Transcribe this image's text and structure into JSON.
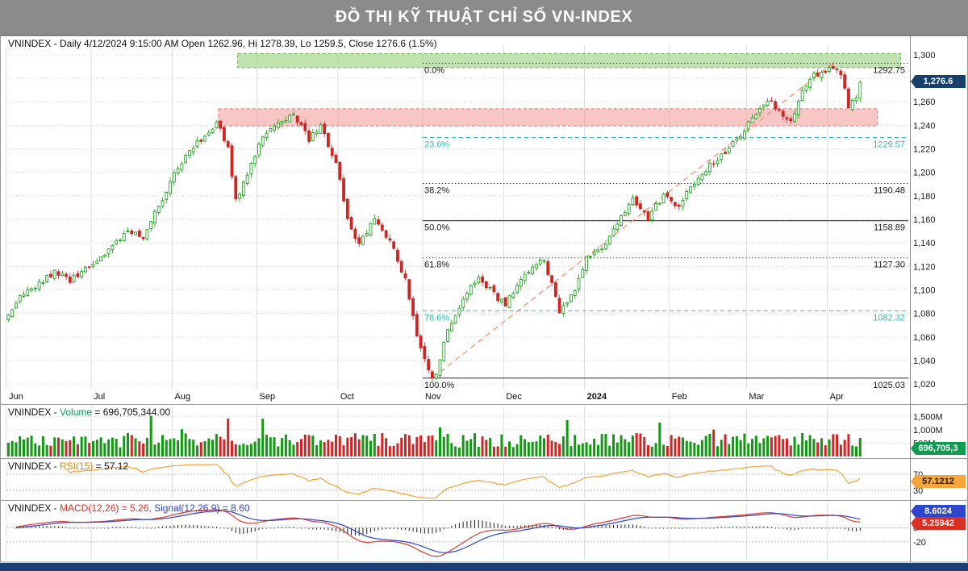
{
  "header": {
    "title": "ĐỒ THỊ KỸ THUẬT CHỈ SỐ VN-INDEX"
  },
  "panes": {
    "price": {
      "title": "VNINDEX - Daily 4/12/2024 9:15:00 AM Open 1262.96, Hi 1278.39, Lo 1259.5, Close 1276.6 (1.5%)"
    },
    "volume": {
      "prefix": "VNINDEX - ",
      "label": "Volume",
      "value": " = 696,705,344.00"
    },
    "rsi": {
      "prefix": "VNINDEX - ",
      "label": "RSI(15)",
      "value": " = 57.12"
    },
    "macd": {
      "prefix": "VNINDEX - ",
      "macd_label": "MACD(12,26) = 5.26,",
      "signal_label": " Signal(12,26,9) = 8.60"
    }
  },
  "badges": {
    "price": "1,276.6",
    "volume": "696,705,3",
    "rsi": "57.1212",
    "macd_signal": "8.6024",
    "macd": "5.25942"
  },
  "chart_data": {
    "type": "candlestick",
    "instrument": "VNINDEX",
    "x_axis": {
      "total_days": 234,
      "months": [
        {
          "label": "Jun",
          "day": 0
        },
        {
          "label": "Jul",
          "day": 22
        },
        {
          "label": "Aug",
          "day": 43
        },
        {
          "label": "Sep",
          "day": 65
        },
        {
          "label": "Oct",
          "day": 86
        },
        {
          "label": "Nov",
          "day": 108
        },
        {
          "label": "Dec",
          "day": 129
        },
        {
          "label": "2024",
          "day": 150,
          "bold": true
        },
        {
          "label": "Feb",
          "day": 172
        },
        {
          "label": "Mar",
          "day": 192
        },
        {
          "label": "Apr",
          "day": 213
        }
      ]
    },
    "price_axis": {
      "min": 1020,
      "max": 1300,
      "step": 20
    },
    "volume_axis": {
      "max": 1750000000,
      "ticks": [
        {
          "label": "1,500M",
          "value": 1500000000
        },
        {
          "label": "1,000M",
          "value": 1000000000
        },
        {
          "label": "500M",
          "value": 500000000
        }
      ]
    },
    "rsi_axis": {
      "ticks": [
        70,
        30
      ]
    },
    "macd_axis": {
      "ticks": [
        0,
        -20
      ]
    },
    "fib_start_day": 108,
    "fibonacci": [
      {
        "label": "0.0%",
        "value": 1292.75,
        "value_label": "1292.75",
        "style": "dotted",
        "color": "#444444",
        "text_color": "#1a1a1a"
      },
      {
        "label": "23.6%",
        "value": 1229.57,
        "value_label": "1229.57",
        "style": "dashed",
        "color": "#35baba",
        "text_color": "#35baba"
      },
      {
        "label": "38.2%",
        "value": 1190.48,
        "value_label": "1190.48",
        "style": "dotted",
        "color": "#444444",
        "text_color": "#1a1a1a"
      },
      {
        "label": "50.0%",
        "value": 1158.89,
        "value_label": "1158.89",
        "style": "solid",
        "color": "#444444",
        "text_color": "#1a1a1a"
      },
      {
        "label": "61.8%",
        "value": 1127.3,
        "value_label": "1127.30",
        "style": "dotted",
        "color": "#444444",
        "text_color": "#1a1a1a"
      },
      {
        "label": "78.6%",
        "value": 1082.32,
        "value_label": "1082.32",
        "style": "dashed",
        "color": "#35baba",
        "text_color": "#35baba"
      },
      {
        "label": "100.0%",
        "value": 1025.03,
        "value_label": "1025.03",
        "style": "solid",
        "color": "#444444",
        "text_color": "#1a1a1a"
      }
    ],
    "zones": [
      {
        "name": "resistance-zone",
        "from": 1289,
        "to": 1301,
        "from_day": 60,
        "to_day": 232,
        "fill": "rgba(158,212,132,0.65)",
        "border": "#6fae5c"
      },
      {
        "name": "supply-zone",
        "from": 1239.5,
        "to": 1254,
        "from_day": 55,
        "to_day": 226,
        "fill": "rgba(245,160,160,0.6)",
        "border": "#e07b7b"
      }
    ],
    "trendline": {
      "from_day": 110,
      "from_price": 1025,
      "to_day": 214,
      "to_price": 1293
    },
    "price_path_keyframes": [
      [
        0,
        1078
      ],
      [
        3,
        1095
      ],
      [
        8,
        1106
      ],
      [
        12,
        1116
      ],
      [
        16,
        1108
      ],
      [
        21,
        1121
      ],
      [
        26,
        1134
      ],
      [
        31,
        1150
      ],
      [
        35,
        1144
      ],
      [
        42,
        1192
      ],
      [
        46,
        1215
      ],
      [
        50,
        1228
      ],
      [
        54,
        1242
      ],
      [
        57,
        1222
      ],
      [
        59,
        1175
      ],
      [
        62,
        1200
      ],
      [
        66,
        1230
      ],
      [
        70,
        1242
      ],
      [
        74,
        1248
      ],
      [
        78,
        1228
      ],
      [
        81,
        1240
      ],
      [
        85,
        1208
      ],
      [
        88,
        1160
      ],
      [
        91,
        1138
      ],
      [
        95,
        1162
      ],
      [
        99,
        1142
      ],
      [
        103,
        1108
      ],
      [
        106,
        1062
      ],
      [
        109,
        1030
      ],
      [
        111,
        1026
      ],
      [
        114,
        1068
      ],
      [
        118,
        1092
      ],
      [
        122,
        1112
      ],
      [
        126,
        1096
      ],
      [
        129,
        1088
      ],
      [
        132,
        1102
      ],
      [
        135,
        1116
      ],
      [
        139,
        1126
      ],
      [
        143,
        1082
      ],
      [
        147,
        1098
      ],
      [
        150,
        1128
      ],
      [
        154,
        1134
      ],
      [
        158,
        1158
      ],
      [
        162,
        1176
      ],
      [
        166,
        1162
      ],
      [
        170,
        1180
      ],
      [
        174,
        1172
      ],
      [
        178,
        1192
      ],
      [
        182,
        1206
      ],
      [
        186,
        1216
      ],
      [
        190,
        1232
      ],
      [
        193,
        1246
      ],
      [
        197,
        1262
      ],
      [
        200,
        1252
      ],
      [
        203,
        1242
      ],
      [
        206,
        1268
      ],
      [
        209,
        1282
      ],
      [
        212,
        1284
      ],
      [
        214,
        1290
      ],
      [
        216,
        1284
      ],
      [
        218,
        1256
      ],
      [
        220,
        1262
      ],
      [
        221,
        1277
      ]
    ],
    "last_candle": {
      "open": 1262.96,
      "high": 1278.39,
      "low": 1259.5,
      "close": 1276.6
    },
    "last_volume": 696705344,
    "indicators": {
      "rsi_period": 15,
      "rsi_last": 57.12,
      "macd_fast": 12,
      "macd_slow": 26,
      "macd_signal_period": 9,
      "macd_last": 5.26,
      "signal_last": 8.6
    },
    "colors": {
      "up": "#0f9b0f",
      "down": "#cf2525",
      "volume_up": "#119a11",
      "volume_down": "#cf2525",
      "rsi_line": "#f2a23a",
      "macd_line": "#e03a2f",
      "signal_line": "#2d46cc",
      "trendline": "#fd8f68",
      "grid": "#dcdcdc",
      "hgrid": "#d8d8d8",
      "badge_navy": "#17406d",
      "badge_green": "#0e9c50",
      "badge_orange": "#f4a63a",
      "badge_blue": "#2d46cc",
      "badge_red": "#d93025"
    }
  }
}
